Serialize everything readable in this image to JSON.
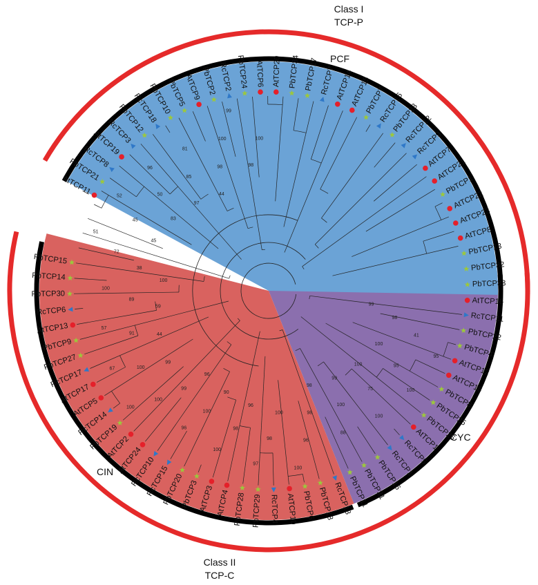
{
  "class_labels": [
    {
      "line1": "Class I",
      "line2": "TCP-P"
    },
    {
      "line1": "Class II",
      "line2": "TCP-C"
    }
  ],
  "subclades": [
    "PCF",
    "CIN",
    "CYC"
  ],
  "colors": {
    "pcf_fill": "#6ba3d6",
    "cin_fill": "#d9625f",
    "cyc_fill": "#8b6fae",
    "class_ring": "#e52a2a",
    "subclade_ring": "#000000",
    "marker_at": "#e5202a",
    "marker_pb": "#9cc83c",
    "marker_rc": "#2f78c8"
  },
  "markers": {
    "At": "circle",
    "Pb": "star",
    "Rc": "triangle"
  },
  "leaves": [
    {
      "name": "RcTCP11",
      "group": "CYC",
      "sp": "Rc"
    },
    {
      "name": "PbTCP22",
      "group": "CYC",
      "sp": "Pb"
    },
    {
      "name": "PbTCP4",
      "group": "CYC",
      "sp": "Pb"
    },
    {
      "name": "AtTCP12",
      "group": "CYC",
      "sp": "At"
    },
    {
      "name": "AtTCP18",
      "group": "CYC",
      "sp": "At"
    },
    {
      "name": "PbTCP8",
      "group": "CYC",
      "sp": "Pb"
    },
    {
      "name": "PbTCP25",
      "group": "CYC",
      "sp": "Pb"
    },
    {
      "name": "PbTCP26",
      "group": "CYC",
      "sp": "Pb"
    },
    {
      "name": "AtTCP1",
      "group": "CYC",
      "sp": "At"
    },
    {
      "name": "RcTCP5",
      "group": "CYC",
      "sp": "Rc"
    },
    {
      "name": "RcTCP1",
      "group": "CYC",
      "sp": "Rc"
    },
    {
      "name": "PbTCP16",
      "group": "CYC",
      "sp": "Pb"
    },
    {
      "name": "PbTCP31",
      "group": "CYC",
      "sp": "Pb"
    },
    {
      "name": "PbTCP11",
      "group": "CYC",
      "sp": "Pb"
    },
    {
      "name": "RcTCP13",
      "group": "CIN",
      "sp": "Rc"
    },
    {
      "name": "PbTCP18",
      "group": "CIN",
      "sp": "Pb"
    },
    {
      "name": "PbTCP6",
      "group": "CIN",
      "sp": "Pb"
    },
    {
      "name": "AtTCP10",
      "group": "CIN",
      "sp": "At"
    },
    {
      "name": "RcTCP4",
      "group": "CIN",
      "sp": "Rc"
    },
    {
      "name": "PbTCP29",
      "group": "CIN",
      "sp": "Pb"
    },
    {
      "name": "PbTCP28",
      "group": "CIN",
      "sp": "Pb"
    },
    {
      "name": "AtTCP4",
      "group": "CIN",
      "sp": "At"
    },
    {
      "name": "AtTCP3",
      "group": "CIN",
      "sp": "At"
    },
    {
      "name": "PbTCP3",
      "group": "CIN",
      "sp": "Pb"
    },
    {
      "name": "PbTCP20",
      "group": "CIN",
      "sp": "Pb"
    },
    {
      "name": "RcTCP15",
      "group": "CIN",
      "sp": "Rc"
    },
    {
      "name": "RcTCP10",
      "group": "CIN",
      "sp": "Rc"
    },
    {
      "name": "AtTCP24",
      "group": "CIN",
      "sp": "At"
    },
    {
      "name": "AtTCP2",
      "group": "CIN",
      "sp": "At"
    },
    {
      "name": "PbTCP19",
      "group": "CIN",
      "sp": "Pb"
    },
    {
      "name": "RcTCP14",
      "group": "CIN",
      "sp": "Rc"
    },
    {
      "name": "AtTCP5",
      "group": "CIN",
      "sp": "At"
    },
    {
      "name": "AtTCP17",
      "group": "CIN",
      "sp": "At"
    },
    {
      "name": "RcTCP17",
      "group": "CIN",
      "sp": "Rc"
    },
    {
      "name": "PbTCP27",
      "group": "CIN",
      "sp": "Pb"
    },
    {
      "name": "PbTCP9",
      "group": "CIN",
      "sp": "Pb"
    },
    {
      "name": "AtTCP13",
      "group": "CIN",
      "sp": "At"
    },
    {
      "name": "RcTCP6",
      "group": "CIN",
      "sp": "Rc"
    },
    {
      "name": "PbTCP30",
      "group": "CIN",
      "sp": "Pb"
    },
    {
      "name": "PbTCP14",
      "group": "CIN",
      "sp": "Pb"
    },
    {
      "name": "PbTCP15",
      "group": "CIN",
      "sp": "Pb"
    },
    {
      "name": "AtTCP11",
      "group": "PCF",
      "sp": "At"
    },
    {
      "name": "PbTCP21",
      "group": "PCF",
      "sp": "Pb"
    },
    {
      "name": "RcTCP8",
      "group": "PCF",
      "sp": "Rc"
    },
    {
      "name": "AtTCP19",
      "group": "PCF",
      "sp": "At"
    },
    {
      "name": "RcTCP3",
      "group": "PCF",
      "sp": "Rc"
    },
    {
      "name": "PbTCP12",
      "group": "PCF",
      "sp": "Pb"
    },
    {
      "name": "RcTCP18",
      "group": "PCF",
      "sp": "Rc"
    },
    {
      "name": "PbTCP10",
      "group": "PCF",
      "sp": "Pb"
    },
    {
      "name": "PbTCP5",
      "group": "PCF",
      "sp": "Pb"
    },
    {
      "name": "AtTCP9",
      "group": "PCF",
      "sp": "At"
    },
    {
      "name": "PbTCP2",
      "group": "PCF",
      "sp": "Pb"
    },
    {
      "name": "RcTCP2",
      "group": "PCF",
      "sp": "Rc"
    },
    {
      "name": "PbTCP24",
      "group": "PCF",
      "sp": "Pb"
    },
    {
      "name": "AtTCP6",
      "group": "PCF",
      "sp": "At"
    },
    {
      "name": "AtTCP20",
      "group": "PCF",
      "sp": "At"
    },
    {
      "name": "PbTCP34",
      "group": "PCF",
      "sp": "Pb"
    },
    {
      "name": "PbTCP17",
      "group": "PCF",
      "sp": "Pb"
    },
    {
      "name": "RcTCP7",
      "group": "PCF",
      "sp": "Rc"
    },
    {
      "name": "AtTCP14",
      "group": "PCF",
      "sp": "At"
    },
    {
      "name": "AtTCP15",
      "group": "PCF",
      "sp": "At"
    },
    {
      "name": "PbTCP7",
      "group": "PCF",
      "sp": "Pb"
    },
    {
      "name": "RcTCP16",
      "group": "PCF",
      "sp": "Rc"
    },
    {
      "name": "PbTCP23",
      "group": "PCF",
      "sp": "Pb"
    },
    {
      "name": "RcTCP12",
      "group": "PCF",
      "sp": "Rc"
    },
    {
      "name": "RcTCP9",
      "group": "PCF",
      "sp": "Rc"
    },
    {
      "name": "AtTCP7",
      "group": "PCF",
      "sp": "At"
    },
    {
      "name": "AtTCP21",
      "group": "PCF",
      "sp": "At"
    },
    {
      "name": "PbTCP1",
      "group": "PCF",
      "sp": "Pb"
    },
    {
      "name": "AtTCP22",
      "group": "PCF",
      "sp": "At"
    },
    {
      "name": "AtTCP23",
      "group": "PCF",
      "sp": "At"
    },
    {
      "name": "AtTCP8",
      "group": "PCF",
      "sp": "At"
    },
    {
      "name": "PbTCP13",
      "group": "PCF",
      "sp": "Pb"
    },
    {
      "name": "PbTCP32",
      "group": "PCF",
      "sp": "Pb"
    },
    {
      "name": "PbTCP33",
      "group": "PCF",
      "sp": "Pb"
    },
    {
      "name": "AtTCP16",
      "group": "PCF",
      "sp": "At"
    }
  ],
  "bootstrap_values": [
    "99",
    "98",
    "41",
    "95",
    "100",
    "95",
    "100",
    "100",
    "75",
    "100",
    "99",
    "100",
    "88",
    "98",
    "98",
    "96",
    "100",
    "100",
    "98",
    "97",
    "96",
    "98",
    "100",
    "90",
    "100",
    "96",
    "96",
    "99",
    "100",
    "100",
    "99",
    "100",
    "67",
    "44",
    "91",
    "57",
    "59",
    "89",
    "100",
    "100",
    "38",
    "72",
    "51",
    "45",
    "45",
    "52",
    "83",
    "50",
    "96",
    "97",
    "85",
    "81",
    "44",
    "98",
    "100",
    "99",
    "98",
    "100",
    "",
    "",
    "",
    "",
    "",
    "",
    "",
    "",
    "",
    "",
    "",
    "",
    "",
    "",
    "",
    "",
    "",
    "",
    ""
  ]
}
